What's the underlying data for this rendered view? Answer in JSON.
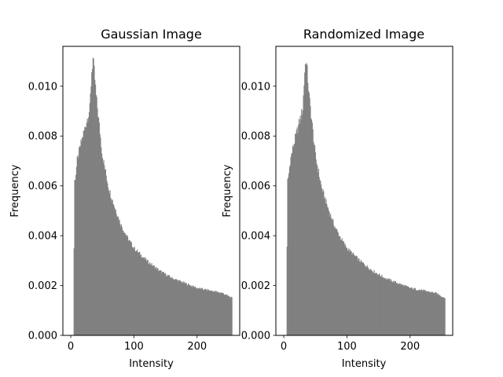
{
  "chart_data": [
    {
      "type": "bar",
      "title": "Gaussian Image",
      "xlabel": "Intensity",
      "ylabel": "Frequency",
      "xlim": [
        -12.5,
        267.5
      ],
      "ylim": [
        0,
        0.0116
      ],
      "xticks": [
        "0",
        "100",
        "200"
      ],
      "yticks": [
        "0.000",
        "0.002",
        "0.004",
        "0.006",
        "0.008",
        "0.010"
      ],
      "bar_color": "#808080",
      "bins_x": [
        0,
        255
      ],
      "anchors": {
        "intensity": [
          0,
          4,
          5,
          6,
          8,
          10,
          15,
          20,
          25,
          30,
          33,
          35,
          37,
          40,
          43,
          50,
          60,
          70,
          80,
          90,
          100,
          120,
          140,
          160,
          180,
          200,
          220,
          240,
          255
        ],
        "frequency": [
          0,
          0,
          0.0035,
          0.0062,
          0.0065,
          0.007,
          0.0076,
          0.0081,
          0.0086,
          0.0091,
          0.0106,
          0.0111,
          0.0106,
          0.0096,
          0.0089,
          0.0072,
          0.0059,
          0.0051,
          0.0044,
          0.0039,
          0.0035,
          0.003,
          0.0026,
          0.0023,
          0.0021,
          0.0019,
          0.0018,
          0.0017,
          0.0015
        ]
      }
    },
    {
      "type": "bar",
      "title": "Randomized Image",
      "xlabel": "Intensity",
      "ylabel": "Frequency",
      "xlim": [
        -12.5,
        267.5
      ],
      "ylim": [
        0,
        0.0116
      ],
      "xticks": [
        "0",
        "100",
        "200"
      ],
      "yticks": [
        "0.000",
        "0.002",
        "0.004",
        "0.006",
        "0.008",
        "0.010"
      ],
      "bar_color": "#808080",
      "bins_x": [
        0,
        255
      ],
      "anchors": {
        "intensity": [
          0,
          4,
          5,
          6,
          8,
          10,
          15,
          20,
          25,
          30,
          33,
          35,
          37,
          40,
          43,
          50,
          60,
          70,
          80,
          90,
          100,
          120,
          140,
          160,
          180,
          200,
          220,
          240,
          255
        ],
        "frequency": [
          0,
          0,
          0.0035,
          0.0062,
          0.0065,
          0.007,
          0.0076,
          0.0081,
          0.0086,
          0.0091,
          0.0106,
          0.0111,
          0.0106,
          0.0096,
          0.0089,
          0.0072,
          0.0059,
          0.0051,
          0.0044,
          0.0039,
          0.0035,
          0.003,
          0.0026,
          0.0023,
          0.0021,
          0.0019,
          0.0018,
          0.0017,
          0.0015
        ]
      }
    }
  ]
}
